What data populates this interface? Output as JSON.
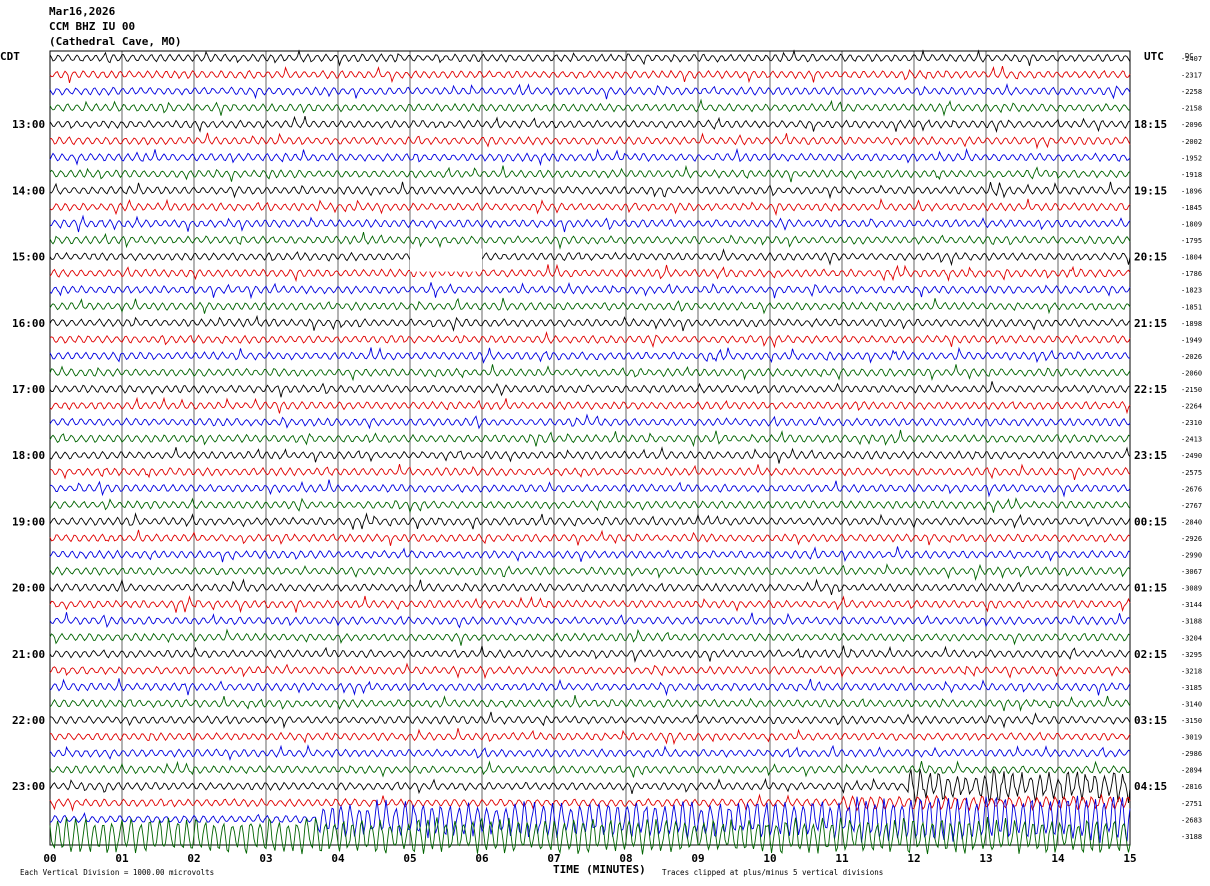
{
  "header": {
    "date": "Mar16,2026",
    "channel": "CCM BHZ IU 00",
    "location": "(Cathedral Cave, MO)"
  },
  "chart_data": {
    "type": "helicorder",
    "title": "Mar16,2026",
    "station": "CCM BHZ IU 00",
    "site": "(Cathedral Cave, MO)",
    "left_axis_label": "CDT",
    "right_axis_label": "UTC",
    "dc_label": "DC",
    "xlabel": "TIME (MINUTES)",
    "x_ticks": [
      "00",
      "01",
      "02",
      "03",
      "04",
      "05",
      "06",
      "07",
      "08",
      "09",
      "10",
      "11",
      "12",
      "13",
      "14",
      "15"
    ],
    "xlim": [
      0,
      15
    ],
    "minutes_per_line": 15,
    "line_count": 48,
    "trace_colors": [
      "#000000",
      "#e00000",
      "#0000e0",
      "#006400"
    ],
    "left_time_labels": [
      {
        "line": 4,
        "text": "13:00"
      },
      {
        "line": 8,
        "text": "14:00"
      },
      {
        "line": 12,
        "text": "15:00"
      },
      {
        "line": 16,
        "text": "16:00"
      },
      {
        "line": 20,
        "text": "17:00"
      },
      {
        "line": 24,
        "text": "18:00"
      },
      {
        "line": 28,
        "text": "19:00"
      },
      {
        "line": 32,
        "text": "20:00"
      },
      {
        "line": 36,
        "text": "21:00"
      },
      {
        "line": 40,
        "text": "22:00"
      },
      {
        "line": 44,
        "text": "23:00"
      }
    ],
    "right_time_labels": [
      {
        "line": 4,
        "text": "18:15"
      },
      {
        "line": 8,
        "text": "19:15"
      },
      {
        "line": 12,
        "text": "20:15"
      },
      {
        "line": 16,
        "text": "21:15"
      },
      {
        "line": 20,
        "text": "22:15"
      },
      {
        "line": 24,
        "text": "23:15"
      },
      {
        "line": 28,
        "text": "00:15"
      },
      {
        "line": 32,
        "text": "01:15"
      },
      {
        "line": 36,
        "text": "02:15"
      },
      {
        "line": 40,
        "text": "03:15"
      },
      {
        "line": 44,
        "text": "04:15"
      }
    ],
    "dc_offsets": [
      "-2407",
      "-2317",
      "-2258",
      "-2158",
      "-2096",
      "-2002",
      "-1952",
      "-1918",
      "-1896",
      "-1845",
      "-1809",
      "-1795",
      "-1804",
      "-1786",
      "-1823",
      "-1851",
      "-1898",
      "-1949",
      "-2026",
      "-2060",
      "-2150",
      "-2264",
      "-2310",
      "-2413",
      "-2490",
      "-2575",
      "-2676",
      "-2767",
      "-2840",
      "-2926",
      "-2990",
      "-3067",
      "-3089",
      "-3144",
      "-3188",
      "-3204",
      "-3295",
      "-3218",
      "-3185",
      "-3140",
      "-3150",
      "-3019",
      "-2986",
      "-2894",
      "-2816",
      "-2751",
      "-2683",
      "-3188"
    ],
    "data_gap": {
      "line": 12,
      "start_min": 5.0,
      "end_min": 6.0
    },
    "event": {
      "start_min": 11.9,
      "description_shown": false
    },
    "footer_left": "Each Vertical Division = 1000.00 microvolts",
    "footer_right": "Traces clipped at plus/minus 5 vertical divisions",
    "grid_vertical": true
  }
}
